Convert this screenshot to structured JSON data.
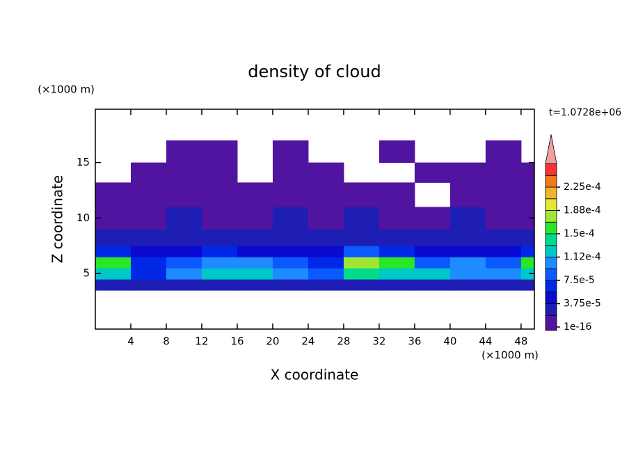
{
  "chart_data": {
    "type": "contour",
    "title": "density of cloud",
    "xlabel": "X coordinate",
    "ylabel": "Z coordinate",
    "x_unit": "(×1000 m)",
    "y_unit": "(×1000 m)",
    "time_label": "t=1.0728e+06",
    "xlim": [
      0,
      49.5
    ],
    "ylim": [
      0,
      19.8
    ],
    "xticks": [
      4,
      8,
      12,
      16,
      20,
      24,
      28,
      32,
      36,
      40,
      44,
      48
    ],
    "yticks": [
      5,
      10,
      15
    ],
    "x_edges": [
      0,
      4,
      8,
      12,
      16,
      20,
      24,
      28,
      32,
      36,
      40,
      44,
      48,
      49.5
    ],
    "z_edges": [
      3.5,
      4.5,
      5.5,
      6.5,
      7.5,
      9,
      11,
      13.2,
      15,
      17
    ],
    "values": [
      [
        2e-05,
        2e-05,
        3e-05,
        2.5e-05,
        2e-05,
        2e-05,
        2e-05,
        3e-05,
        3e-05,
        2e-05,
        2e-05,
        2e-05,
        2.5e-05
      ],
      [
        0.00013,
        7e-05,
        0.00011,
        0.00012,
        0.00012,
        0.00011,
        8e-05,
        0.00014,
        0.00013,
        0.00012,
        0.00011,
        0.00011,
        0.00013
      ],
      [
        0.00016,
        6e-05,
        8e-05,
        0.0001,
        0.0001,
        9e-05,
        6e-05,
        0.00017,
        0.00015,
        9e-05,
        0.00011,
        9e-05,
        0.00015
      ],
      [
        6e-05,
        4e-05,
        5e-05,
        6e-05,
        5e-05,
        5e-05,
        5e-05,
        8e-05,
        6e-05,
        5e-05,
        5e-05,
        5e-05,
        6e-05
      ],
      [
        2.5e-05,
        2e-05,
        3e-05,
        3e-05,
        2.5e-05,
        2.5e-05,
        2.5e-05,
        3e-05,
        3e-05,
        2.5e-05,
        3e-05,
        2.5e-05,
        2.5e-05
      ],
      [
        1e-05,
        1e-05,
        2e-05,
        1e-05,
        1e-05,
        2e-05,
        1e-05,
        2e-05,
        1e-05,
        1e-05,
        2e-05,
        1e-05,
        1e-05
      ],
      [
        1e-16,
        1e-16,
        1e-16,
        1e-16,
        1e-16,
        1e-16,
        1e-16,
        1e-16,
        1e-16,
        null,
        1e-16,
        1e-16,
        1e-16
      ],
      [
        null,
        1e-16,
        1e-16,
        1e-16,
        null,
        1e-16,
        1e-16,
        null,
        null,
        1e-16,
        1e-16,
        1e-16,
        1e-16
      ],
      [
        null,
        null,
        1e-16,
        1e-16,
        null,
        1e-16,
        null,
        null,
        1e-16,
        null,
        null,
        1e-16,
        null
      ]
    ],
    "colorbar": {
      "levels": [
        1e-16,
        1.875e-05,
        3.75e-05,
        5.625e-05,
        7.5e-05,
        9.375e-05,
        0.0001125,
        0.00013125,
        0.00015,
        0.00016875,
        0.0001875,
        0.00020625,
        0.000225,
        0.00024375
      ],
      "colors": [
        "#5014a0",
        "#1e1eb4",
        "#0a0ad2",
        "#0028e6",
        "#0a5aff",
        "#1e8cff",
        "#00c8c8",
        "#00dc8c",
        "#28e628",
        "#a0e632",
        "#e6e632",
        "#f0b428",
        "#f07820",
        "#fa3232"
      ],
      "extend_color": "#f0a0a0",
      "ticks": [
        1e-16,
        {
          "value": 3.75e-05,
          "label": "3.75e-5"
        },
        {
          "value": 7.5e-05,
          "label": "7.5e-5"
        },
        {
          "value": 0.0001125,
          "label": "1.12e-4"
        },
        {
          "value": 0.00015,
          "label": "1.5e-4"
        },
        {
          "value": 0.0001875,
          "label": "1.88e-4"
        },
        {
          "value": 0.000225,
          "label": "2.25e-4"
        }
      ]
    }
  }
}
